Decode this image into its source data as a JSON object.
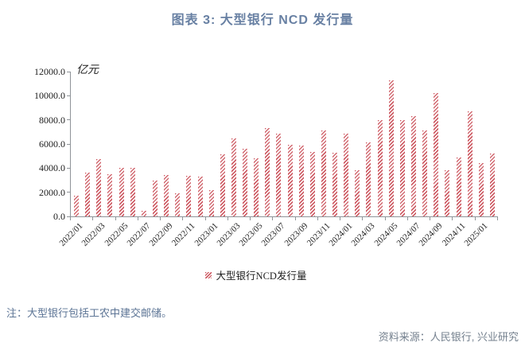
{
  "title": "图表 3: 大型银行 NCD 发行量",
  "unit_label": "亿元",
  "legend": {
    "label": "大型银行NCD发行量"
  },
  "note": "注：大型银行包括工农中建交邮储。",
  "source": "资料来源：人民银行, 兴业研究",
  "colors": {
    "bar_hatch_red": "#C94C56",
    "bar_background": "#FBF2F2",
    "title_blue": "#6880A3",
    "note_blue": "#5C7495",
    "source_gray": "#74808E",
    "axis_gray": "#8F9499"
  },
  "chart_data": {
    "type": "bar",
    "title": "图表 3: 大型银行 NCD 发行量",
    "ylabel": "亿元",
    "xlabel": "",
    "ylim": [
      0,
      12000
    ],
    "grid": false,
    "legend_position": "bottom",
    "series_name": "大型银行NCD发行量",
    "categories": [
      "2022/01",
      "2022/02",
      "2022/03",
      "2022/04",
      "2022/05",
      "2022/06",
      "2022/07",
      "2022/08",
      "2022/09",
      "2022/10",
      "2022/11",
      "2022/12",
      "2023/01",
      "2023/02",
      "2023/03",
      "2023/04",
      "2023/05",
      "2023/06",
      "2023/07",
      "2023/08",
      "2023/09",
      "2023/10",
      "2023/11",
      "2023/12",
      "2024/01",
      "2024/02",
      "2024/03",
      "2024/04",
      "2024/05",
      "2024/06",
      "2024/07",
      "2024/08",
      "2024/09",
      "2024/10",
      "2024/11",
      "2024/12",
      "2025/01",
      "2025/02"
    ],
    "values": [
      1750,
      3600,
      4750,
      3500,
      4050,
      4050,
      450,
      2950,
      3450,
      1900,
      3350,
      3300,
      2150,
      5150,
      6450,
      5600,
      4800,
      7300,
      6850,
      5950,
      5900,
      5350,
      7100,
      5250,
      6850,
      3850,
      6150,
      8000,
      11250,
      7950,
      8300,
      7100,
      10200,
      3800,
      4900,
      8700,
      4400,
      5200
    ],
    "x_tick_labels": [
      "2022/01",
      "2022/03",
      "2022/05",
      "2022/07",
      "2022/09",
      "2022/11",
      "2023/01",
      "2023/03",
      "2023/05",
      "2023/07",
      "2023/09",
      "2023/11",
      "2024/01",
      "2024/03",
      "2024/05",
      "2024/07",
      "2024/09",
      "2024/11",
      "2025/01"
    ],
    "y_tick_labels": [
      "0.0",
      "2000.0",
      "4000.0",
      "6000.0",
      "8000.0",
      "10000.0",
      "12000.0"
    ]
  }
}
